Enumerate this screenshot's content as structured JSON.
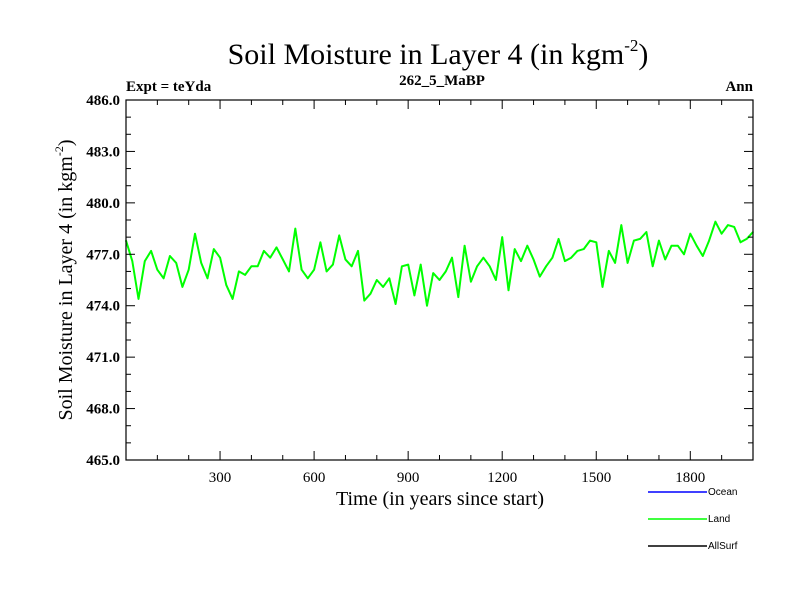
{
  "chart_data": {
    "type": "line",
    "title_main": "Soil Moisture in Layer 4 (in kgm",
    "title_sup": "-2",
    "title_close": ")",
    "subtitle_left": "Expt = teYda",
    "subtitle_center": "262_5_MaBP",
    "subtitle_right": "Ann",
    "xlabel": "Time (in years since start)",
    "ylabel_main": "Soil Moisture in Layer 4 (in kgm",
    "ylabel_sup": "-2",
    "ylabel_close": ")",
    "xlim": [
      0,
      2000
    ],
    "ylim": [
      465.0,
      486.0
    ],
    "x_ticks": [
      300,
      600,
      900,
      1200,
      1500,
      1800
    ],
    "x_tick_labels": [
      "300",
      "600",
      "900",
      "1200",
      "1500",
      "1800"
    ],
    "y_ticks": [
      465,
      468,
      471,
      474,
      477,
      480,
      483,
      486
    ],
    "y_tick_labels": [
      "465.0",
      "468.0",
      "471.0",
      "474.0",
      "477.0",
      "480.0",
      "483.0",
      "486.0"
    ],
    "legend_placement": "bottom-right",
    "legend": [
      {
        "name": "Ocean",
        "color": "#0000ff"
      },
      {
        "name": "Land",
        "color": "#00ff00"
      },
      {
        "name": "AllSurf",
        "color": "#000000"
      }
    ],
    "series": [
      {
        "name": "Land",
        "color": "#00ff00",
        "x_start": 0,
        "x_step": 20,
        "values": [
          477.8,
          476.6,
          474.4,
          476.6,
          477.2,
          476.1,
          475.6,
          476.9,
          476.5,
          475.1,
          476.1,
          478.2,
          476.5,
          475.6,
          477.3,
          476.8,
          475.2,
          474.4,
          476.0,
          475.8,
          476.3,
          476.3,
          477.2,
          476.8,
          477.4,
          476.7,
          476.0,
          478.5,
          476.1,
          475.6,
          476.1,
          477.7,
          476.0,
          476.4,
          478.1,
          476.7,
          476.3,
          477.2,
          474.3,
          474.7,
          475.5,
          475.1,
          475.6,
          474.1,
          476.3,
          476.4,
          474.6,
          476.4,
          474.0,
          475.9,
          475.5,
          476.0,
          476.8,
          474.5,
          477.5,
          475.4,
          476.3,
          476.8,
          476.3,
          475.5,
          478.0,
          474.9,
          477.3,
          476.6,
          477.5,
          476.7,
          475.7,
          476.3,
          476.8,
          477.9,
          476.6,
          476.8,
          477.2,
          477.3,
          477.8,
          477.7,
          475.1,
          477.2,
          476.5,
          478.7,
          476.5,
          477.8,
          477.9,
          478.3,
          476.3,
          477.8,
          476.7,
          477.5,
          477.5,
          477.0,
          478.2,
          477.5,
          476.9,
          477.8,
          478.9,
          478.2,
          478.7,
          478.6,
          477.7,
          477.9,
          478.3
        ]
      },
      {
        "name": "Ocean",
        "color": "#0000ff",
        "values": []
      },
      {
        "name": "AllSurf",
        "color": "#000000",
        "values": []
      }
    ]
  }
}
